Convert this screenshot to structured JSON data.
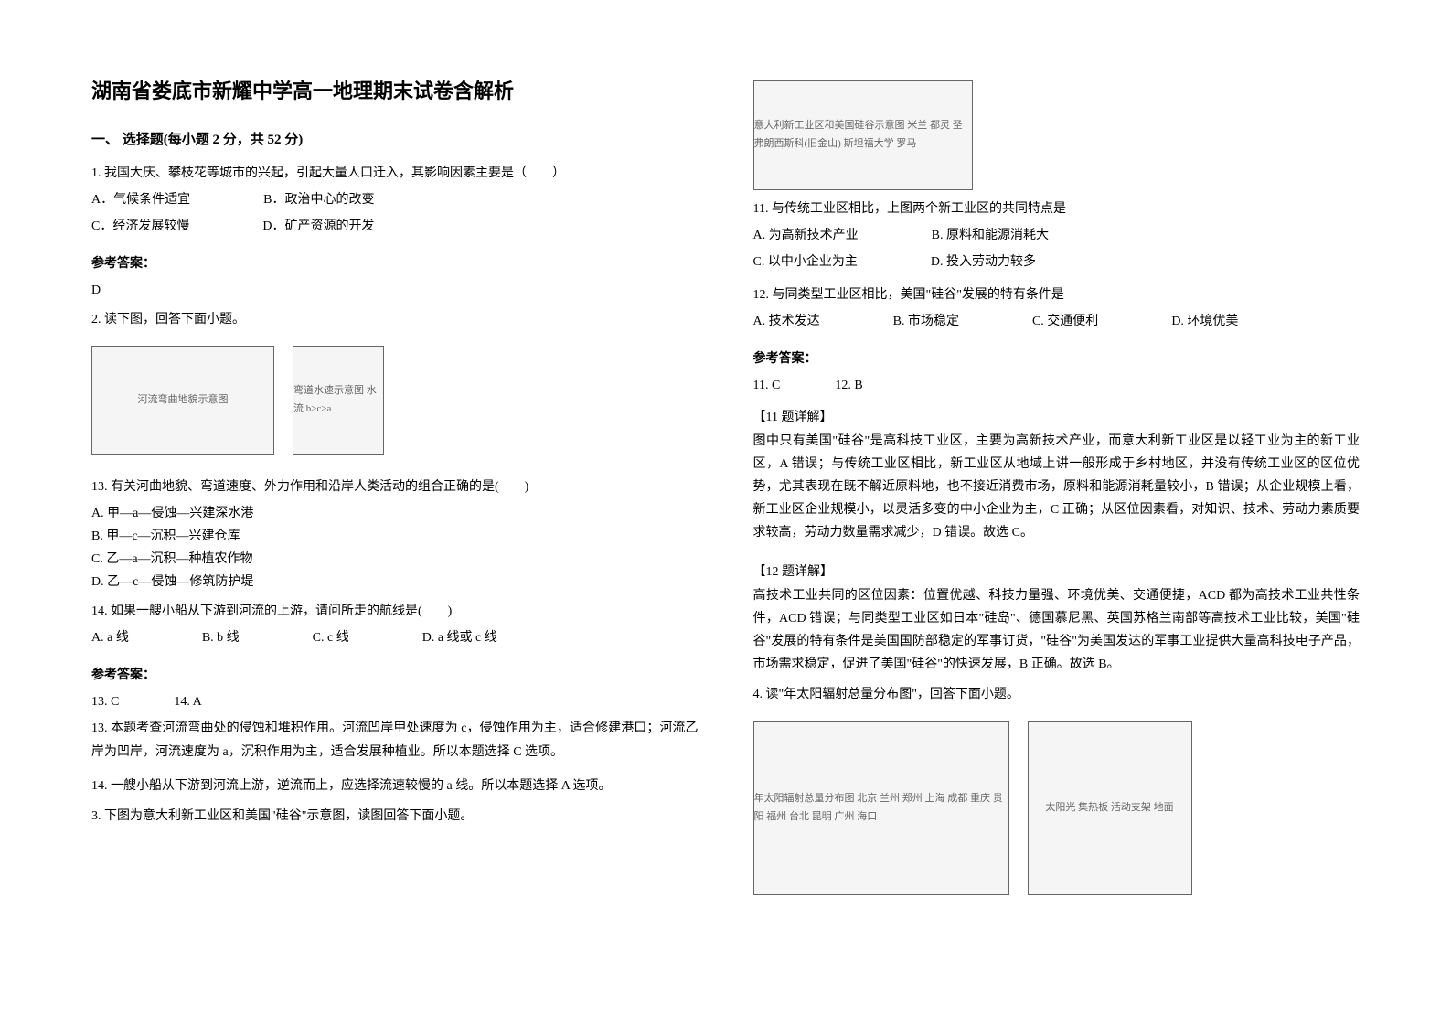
{
  "title": "湖南省娄底市新耀中学高一地理期末试卷含解析",
  "section1": {
    "heading": "一、 选择题(每小题 2 分，共 52 分)"
  },
  "q1": {
    "text": "1. 我国大庆、攀枝花等城市的兴起，引起大量人口迁入，其影响因素主要是（　　）",
    "optA": "A．气候条件适宜",
    "optB": "B．政治中心的改变",
    "optC": "C．经济发展较慢",
    "optD": "D．矿产资源的开发"
  },
  "answer_label": "参考答案：",
  "a1": "D",
  "q2": {
    "text": "2. 读下图，回答下面小题。",
    "img1_alt": "河流弯曲地貌示意图",
    "img2_alt": "弯道水速示意图 水流 b>c>a"
  },
  "q13": {
    "text": "13.  有关河曲地貌、弯道速度、外力作用和沿岸人类活动的组合正确的是(　　)",
    "optA": "A. 甲—a—侵蚀—兴建深水港",
    "optB": "B. 甲—c—沉积—兴建仓库",
    "optC": "C. 乙—a—沉积—种植农作物",
    "optD": "D. 乙—c—侵蚀—修筑防护堤"
  },
  "q14": {
    "text": "14.  如果一艘小船从下游到河流的上游，请问所走的航线是(　　)",
    "optA": "A. a 线",
    "optB": "B. b 线",
    "optC": "C. c 线",
    "optD": "D. a 线或 c 线"
  },
  "a13_14": {
    "line1": "13. C",
    "line2": "14. A"
  },
  "explain13": "13.  本题考查河流弯曲处的侵蚀和堆积作用。河流凹岸甲处速度为 c，侵蚀作用为主，适合修建港口；河流乙岸为凹岸，河流速度为 a，沉积作用为主，适合发展种植业。所以本题选择 C 选项。",
  "explain14": "14.  一艘小船从下游到河流上游，逆流而上，应选择流速较慢的 a 线。所以本题选择 A 选项。",
  "q3": {
    "text": "3. 下图为意大利新工业区和美国\"硅谷\"示意图，读图回答下面小题。",
    "img_alt": "意大利新工业区和美国硅谷示意图 米兰 都灵 圣弗朗西斯科(旧金山) 斯坦福大学 罗马"
  },
  "q11": {
    "text": "11.  与传统工业区相比，上图两个新工业区的共同特点是",
    "optA": "A. 为高新技术产业",
    "optB": "B. 原料和能源消耗大",
    "optC": "C. 以中小企业为主",
    "optD": "D. 投入劳动力较多"
  },
  "q12": {
    "text": "12.  与同类型工业区相比，美国\"硅谷\"发展的特有条件是",
    "optA": "A. 技术发达",
    "optB": "B. 市场稳定",
    "optC": "C. 交通便利",
    "optD": "D. 环境优美"
  },
  "a11_12": {
    "line1": "11. C",
    "line2": "12. B"
  },
  "explain11_title": "【11 题详解】",
  "explain11": "图中只有美国\"硅谷\"是高科技工业区，主要为高新技术产业，而意大利新工业区是以轻工业为主的新工业区，A 错误；与传统工业区相比，新工业区从地域上讲一般形成于乡村地区，并没有传统工业区的区位优势，尤其表现在既不解近原料地，也不接近消费市场，原料和能源消耗量较小，B 错误；从企业规模上看，新工业区企业规模小，以灵活多变的中小企业为主，C 正确；从区位因素看，对知识、技术、劳动力素质要求较高，劳动力数量需求减少，D 错误。故选 C。",
  "explain12_title": "【12 题详解】",
  "explain12": "高技术工业共同的区位因素：位置优越、科技力量强、环境优美、交通便捷，ACD 都为高技术工业共性条件，ACD 错误；与同类型工业区如日本\"硅岛\"、德国慕尼黑、英国苏格兰南部等高技术工业比较，美国\"硅谷\"发展的特有条件是美国国防部稳定的军事订货，\"硅谷\"为美国发达的军事工业提供大量高科技电子产品，市场需求稳定，促进了美国\"硅谷\"的快速发展，B 正确。故选 B。",
  "q4": {
    "text": "4. 读\"年太阳辐射总量分布图\"，回答下面小题。",
    "img1_alt": "年太阳辐射总量分布图 北京 兰州 郑州 上海 成都 重庆 贵阳 福州 台北 昆明 广州 海口",
    "img2_alt": "太阳光 集热板 活动支架 地面"
  }
}
